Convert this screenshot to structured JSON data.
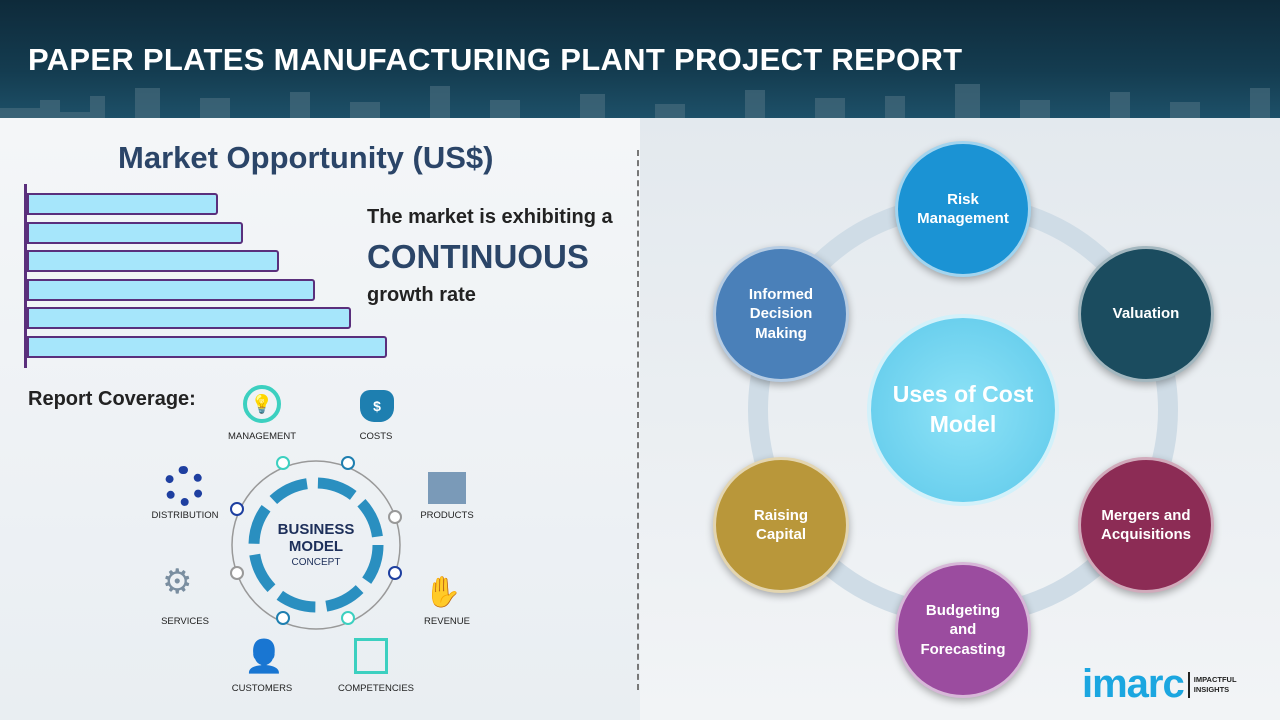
{
  "header": {
    "title": "PAPER PLATES MANUFACTURING PLANT PROJECT REPORT"
  },
  "market": {
    "title": "Market Opportunity (US$)",
    "bar_levels": [
      0.53,
      0.6,
      0.7,
      0.8,
      0.9,
      1.0
    ],
    "line1": "The market is exhibiting a",
    "line2": "CONTINUOUS",
    "line3": "growth rate"
  },
  "coverage": {
    "title": "Report Coverage:",
    "center_line1": "BUSINESS",
    "center_line2": "MODEL",
    "center_line3": "CONCEPT",
    "items": [
      "MANAGEMENT",
      "COSTS",
      "PRODUCTS",
      "REVENUE",
      "COMPETENCIES",
      "CUSTOMERS",
      "SERVICES",
      "DISTRIBUTION"
    ]
  },
  "cost_model": {
    "center": "Uses of Cost Model",
    "nodes": [
      {
        "label": "Risk Management",
        "color": "#1b93d4"
      },
      {
        "label": "Valuation",
        "color": "#1b4c5f"
      },
      {
        "label": "Mergers and Acquisitions",
        "color": "#8c2c55"
      },
      {
        "label": "Budgeting and Forecasting",
        "color": "#9b4c9f"
      },
      {
        "label": "Raising Capital",
        "color": "#b9973a"
      },
      {
        "label": "Informed Decision Making",
        "color": "#4a80b9"
      }
    ]
  },
  "logo": {
    "name": "imarc",
    "tagline1": "IMPACTFUL",
    "tagline2": "INSIGHTS"
  }
}
